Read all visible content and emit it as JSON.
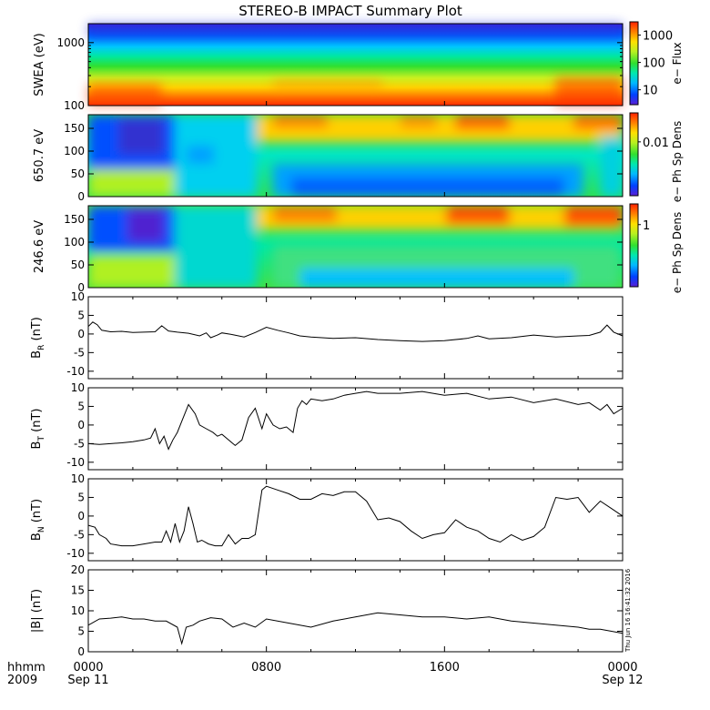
{
  "title": "STEREO-B IMPACT Summary Plot",
  "footer": {
    "left_top": "hhmm",
    "left_bottom": "2009",
    "ticks": [
      {
        "time": "0000",
        "date": "Sep 11"
      },
      {
        "time": "0800",
        "date": ""
      },
      {
        "time": "1600",
        "date": ""
      },
      {
        "time": "0000",
        "date": "Sep 12"
      }
    ]
  },
  "timestamp": "Thu Jun 16 16:41:32 2016",
  "colors": {
    "spectrum": [
      "#3b1fd6",
      "#0040ff",
      "#00c8ff",
      "#00e88a",
      "#30e030",
      "#c8f020",
      "#ffe000",
      "#ff8a00",
      "#ff2a00"
    ]
  },
  "chart_data": [
    {
      "type": "heatmap",
      "ylabel": "SWEA (eV)",
      "y_scale": "log",
      "ylim": [
        100,
        2000
      ],
      "yticks": [
        "100",
        "1000"
      ],
      "colorbar": {
        "label": "e− Flux",
        "scale": "log",
        "ticks": [
          "10",
          "100",
          "1000"
        ]
      },
      "description_levels": "flux decreases with energy; highest at 100 eV (red), lowest near 2000 eV (blue)"
    },
    {
      "type": "heatmap",
      "ylabel": "650.7 eV",
      "ylim": [
        0,
        180
      ],
      "yticks": [
        "0",
        "50",
        "100",
        "150"
      ],
      "colorbar": {
        "label": "e− Ph Sp Dens",
        "scale": "log",
        "ticks": [
          "0.01"
        ]
      }
    },
    {
      "type": "heatmap",
      "ylabel": "246.6 eV",
      "ylim": [
        0,
        180
      ],
      "yticks": [
        "0",
        "50",
        "100",
        "150"
      ],
      "colorbar": {
        "label": "e− Ph Sp Dens",
        "scale": "log",
        "ticks": [
          "1"
        ]
      }
    },
    {
      "type": "line",
      "ylabel_main": "B",
      "ylabel_sub": "R",
      "ylabel_unit": " (nT)",
      "ylim": [
        -12,
        10
      ],
      "yticks": [
        "-10",
        "-5",
        "0",
        "5",
        "10"
      ],
      "x_hours": [
        0,
        0.2,
        0.4,
        0.6,
        1,
        1.5,
        2,
        2.5,
        3,
        3.3,
        3.6,
        4,
        4.5,
        5,
        5.3,
        5.5,
        5.8,
        6,
        6.5,
        7,
        7.5,
        8,
        8.5,
        9,
        9.5,
        10,
        11,
        12,
        13,
        14,
        15,
        16,
        17,
        17.5,
        18,
        19,
        20,
        21,
        22,
        22.5,
        23,
        23.3,
        23.6,
        24
      ],
      "values": [
        2,
        3.2,
        2.5,
        1,
        0.6,
        0.7,
        0.4,
        0.5,
        0.6,
        2.2,
        0.8,
        0.5,
        0.2,
        -0.5,
        0.3,
        -1,
        -0.3,
        0.3,
        -0.2,
        -0.8,
        0.4,
        1.8,
        1,
        0.3,
        -0.5,
        -0.8,
        -1.2,
        -1,
        -1.5,
        -1.8,
        -2,
        -1.8,
        -1.2,
        -0.5,
        -1.3,
        -1,
        -0.3,
        -0.8,
        -0.5,
        -0.4,
        0.5,
        2.4,
        0.5,
        -0.5
      ]
    },
    {
      "type": "line",
      "ylabel_main": "B",
      "ylabel_sub": "T",
      "ylabel_unit": " (nT)",
      "ylim": [
        -12,
        10
      ],
      "yticks": [
        "-10",
        "-5",
        "0",
        "5",
        "10"
      ],
      "x_hours": [
        0,
        0.5,
        1,
        1.5,
        2,
        2.5,
        2.8,
        3,
        3.2,
        3.4,
        3.6,
        3.8,
        4,
        4.2,
        4.5,
        4.8,
        5,
        5.3,
        5.6,
        5.8,
        6,
        6.3,
        6.6,
        6.9,
        7.2,
        7.5,
        7.8,
        8,
        8.3,
        8.6,
        8.9,
        9.2,
        9.4,
        9.6,
        9.8,
        10,
        10.5,
        11,
        11.5,
        12,
        12.5,
        13,
        14,
        15,
        16,
        17,
        18,
        19,
        20,
        21,
        22,
        22.5,
        23,
        23.3,
        23.6,
        24
      ],
      "values": [
        -5,
        -5.2,
        -5,
        -4.8,
        -4.5,
        -4,
        -3.5,
        -1,
        -5,
        -3,
        -6.5,
        -4,
        -2,
        1,
        5.5,
        3,
        0,
        -1,
        -2,
        -3,
        -2.5,
        -4,
        -5.5,
        -4,
        2,
        4.5,
        -1,
        3,
        0,
        -1,
        -0.5,
        -2,
        4.5,
        6.5,
        5.5,
        7,
        6.5,
        7,
        8,
        8.5,
        9,
        8.5,
        8.5,
        9,
        8,
        8.5,
        7,
        7.5,
        6,
        7,
        5.5,
        6,
        4,
        5.5,
        3,
        4.5
      ]
    },
    {
      "type": "line",
      "ylabel_main": "B",
      "ylabel_sub": "N",
      "ylabel_unit": " (nT)",
      "ylim": [
        -12,
        10
      ],
      "yticks": [
        "-10",
        "-5",
        "0",
        "5",
        "10"
      ],
      "x_hours": [
        0,
        0.3,
        0.5,
        0.8,
        1,
        1.5,
        2,
        2.5,
        3,
        3.3,
        3.5,
        3.7,
        3.9,
        4.1,
        4.3,
        4.5,
        4.7,
        4.9,
        5.1,
        5.4,
        5.7,
        6,
        6.3,
        6.6,
        6.9,
        7.2,
        7.5,
        7.8,
        8,
        8.5,
        9,
        9.5,
        10,
        10.5,
        11,
        11.5,
        12,
        12.5,
        13,
        13.5,
        14,
        14.5,
        15,
        15.5,
        16,
        16.5,
        17,
        17.5,
        18,
        18.5,
        19,
        19.5,
        20,
        20.5,
        21,
        21.5,
        22,
        22.5,
        23,
        23.5,
        24
      ],
      "values": [
        -2.5,
        -3,
        -5,
        -6,
        -7.5,
        -8,
        -8,
        -7.5,
        -7,
        -7,
        -4,
        -7,
        -2,
        -7,
        -4,
        2.5,
        -2,
        -7,
        -6.5,
        -7.5,
        -8,
        -8,
        -5,
        -7.5,
        -6,
        -6,
        -5,
        7,
        8,
        7,
        6,
        4.5,
        4.5,
        6,
        5.5,
        6.5,
        6.5,
        4,
        -1,
        -0.5,
        -1.5,
        -4,
        -6,
        -5,
        -4.5,
        -1,
        -3,
        -4,
        -6,
        -7,
        -5,
        -6.5,
        -5.5,
        -3,
        5,
        4.5,
        5,
        1,
        4,
        2,
        0
      ]
    },
    {
      "type": "line",
      "ylabel_main": "|B|",
      "ylabel_sub": "",
      "ylabel_unit": " (nT)",
      "ylim": [
        0,
        20
      ],
      "yticks": [
        "0",
        "5",
        "10",
        "15",
        "20"
      ],
      "x_hours": [
        0,
        0.5,
        1,
        1.5,
        2,
        2.5,
        3,
        3.5,
        4,
        4.2,
        4.4,
        4.7,
        5,
        5.5,
        6,
        6.5,
        7,
        7.5,
        8,
        9,
        10,
        11,
        12,
        13,
        14,
        15,
        16,
        17,
        18,
        19,
        20,
        21,
        22,
        22.5,
        23,
        23.5,
        24
      ],
      "values": [
        6.5,
        8,
        8.2,
        8.5,
        8,
        8,
        7.5,
        7.5,
        6,
        2,
        6,
        6.5,
        7.5,
        8.3,
        8,
        6,
        7,
        6,
        8,
        7,
        6,
        7.5,
        8.5,
        9.5,
        9,
        8.5,
        8.5,
        8,
        8.5,
        7.5,
        7,
        6.5,
        6,
        5.5,
        5.5,
        5,
        4.5
      ]
    }
  ]
}
